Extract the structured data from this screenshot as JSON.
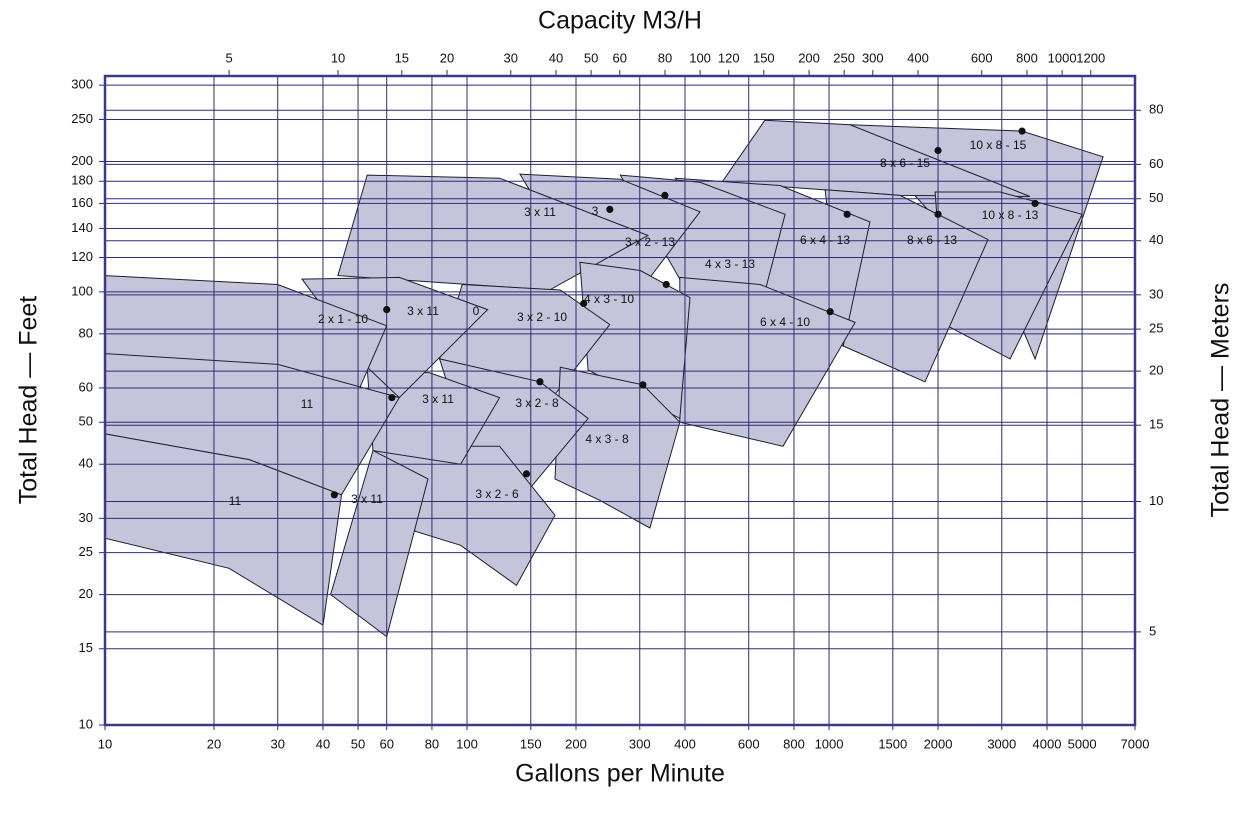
{
  "chart_data": {
    "type": "region",
    "xlabel": "Gallons per Minute",
    "x2label": "Capacity M3/H",
    "ylabel": "Total Head — Feet",
    "y2label": "Total Head — Meters",
    "xlog": true,
    "ylog": true,
    "grid": true,
    "color": "#c4c5da",
    "edge_color": "#1e1e2e",
    "grid_color": "#2e2e70",
    "xlim": [
      10,
      7000
    ],
    "xticks": [
      10,
      20,
      30,
      40,
      50,
      60,
      80,
      100,
      150,
      200,
      300,
      400,
      600,
      800,
      1000,
      1500,
      2000,
      3000,
      4000,
      5000,
      7000
    ],
    "x2lim": [
      2.271,
      1590
    ],
    "x2ticks": [
      5,
      10,
      15,
      20,
      30,
      40,
      50,
      60,
      80,
      100,
      120,
      150,
      200,
      250,
      300,
      400,
      600,
      800,
      1000,
      1200
    ],
    "ylim": [
      10,
      315
    ],
    "yticks": [
      10,
      15,
      20,
      25,
      30,
      40,
      50,
      60,
      80,
      100,
      120,
      140,
      160,
      180,
      200,
      250,
      300
    ],
    "y2lim": [
      3.048,
      96.0
    ],
    "y2ticks": [
      5,
      10,
      15,
      20,
      25,
      30,
      40,
      50,
      60,
      80
    ],
    "regions": [
      {
        "name": "10 x 8 - 15",
        "gpm": [
          1143,
          3413,
          5714,
          3707,
          3162
        ],
        "head": [
          243,
          235,
          205,
          70,
          96
        ],
        "bep": [
          3413,
          235
        ]
      },
      {
        "name": "8 x 6 - 15",
        "gpm": [
          665,
          1143,
          3589,
          1571,
          506
        ],
        "head": [
          249,
          243,
          166,
          167,
          179
        ],
        "bep": [
          2000,
          212
        ]
      },
      {
        "name": "10 x 8 - 13",
        "gpm": [
          1963,
          2966,
          5000,
          3162,
          2090
        ],
        "head": [
          170,
          170,
          151,
          70,
          84
        ],
        "bep": [
          3707,
          160
        ]
      },
      {
        "name": "8 x 6 - 13",
        "gpm": [
          975,
          1571,
          2748,
          1841,
          1094
        ],
        "head": [
          172,
          167,
          132,
          62,
          75
        ],
        "bep": [
          2000,
          151
        ]
      },
      {
        "name": "6 x 4 - 13",
        "gpm": [
          376,
          732,
          1297,
          1094,
          665
        ],
        "head": [
          183,
          176,
          145,
          75,
          100
        ],
        "bep": [
          1122,
          151
        ]
      },
      {
        "name": "4 x 3 - 13",
        "gpm": [
          265,
          440,
          756,
          665,
          387
        ],
        "head": [
          186,
          179,
          151,
          100,
          107
        ],
        "bep": null
      },
      {
        "name": "6 x 4 - 10",
        "gpm": [
          387,
          645,
          1180,
          746,
          387
        ],
        "head": [
          108,
          104,
          85,
          44,
          50
        ],
        "bep": [
          1007,
          90
        ]
      },
      {
        "name": "3 x 2 - 13",
        "gpm": [
          140,
          265,
          440,
          301,
          199
        ],
        "head": [
          187,
          182,
          153,
          101,
          115
        ],
        "bep": [
          352,
          167
        ]
      },
      {
        "name": "3 x 11",
        "gpm": [
          53,
          123,
          316,
          169,
          44
        ],
        "head": [
          186,
          183,
          135,
          101,
          109
        ],
        "bep": [
          248,
          155
        ]
      },
      {
        "name": "4 x 3 - 10",
        "gpm": [
          205,
          301,
          413,
          387,
          216
        ],
        "head": [
          117,
          112,
          97,
          51,
          66
        ],
        "bep": [
          355,
          104
        ]
      },
      {
        "name": "3 x 2 - 10",
        "gpm": [
          97,
          181,
          248,
          175,
          84
        ],
        "head": [
          104,
          101,
          84,
          58,
          70
        ],
        "bep": [
          210,
          94
        ]
      },
      {
        "name": "4 x 3 - 8",
        "gpm": [
          181,
          306,
          387,
          320,
          233,
          175
        ],
        "head": [
          67,
          61,
          50,
          28.5,
          33,
          37
        ],
        "bep": [
          306,
          61
        ]
      },
      {
        "name": "3 x 2 - 8",
        "gpm": [
          84,
          159,
          216,
          140,
          102
        ],
        "head": [
          70,
          62,
          51,
          33,
          42
        ],
        "bep": [
          159,
          62
        ]
      },
      {
        "name": "3 x 2 - 6",
        "gpm": [
          55,
          65,
          123,
          175,
          137,
          96,
          72
        ],
        "head": [
          43,
          44,
          44,
          30.5,
          21,
          26,
          28
        ],
        "bep": [
          146,
          38
        ]
      },
      {
        "name": "3 x 11",
        "gpm": [
          53,
          79,
          123,
          96,
          55
        ],
        "head": [
          67,
          65,
          57,
          40,
          43
        ],
        "bep": null
      },
      {
        "name": "3 x 11",
        "gpm": [
          35,
          65,
          114,
          65,
          53
        ],
        "head": [
          107,
          108,
          91,
          57,
          67
        ],
        "bep": [
          60,
          91
        ]
      },
      {
        "name": "2 x 1 - 10",
        "gpm": [
          10,
          30,
          60,
          45,
          10
        ],
        "head": [
          109,
          104,
          83.5,
          48,
          72
        ],
        "bep": null
      },
      {
        "name": "3 x 11",
        "gpm": [
          55,
          78,
          60,
          42
        ],
        "head": [
          43,
          37,
          16,
          20
        ],
        "bep": null
      },
      {
        "name": "11",
        "gpm": [
          10,
          30,
          65,
          45,
          25,
          10
        ],
        "head": [
          72,
          68,
          57,
          34,
          41,
          47
        ],
        "bep": [
          62,
          57
        ]
      },
      {
        "name": "11",
        "gpm": [
          10,
          25,
          45,
          40,
          22,
          10
        ],
        "head": [
          47,
          41,
          34,
          17,
          23,
          27
        ],
        "bep": [
          43,
          34
        ]
      }
    ],
    "annotations": [
      "3",
      "0"
    ]
  }
}
